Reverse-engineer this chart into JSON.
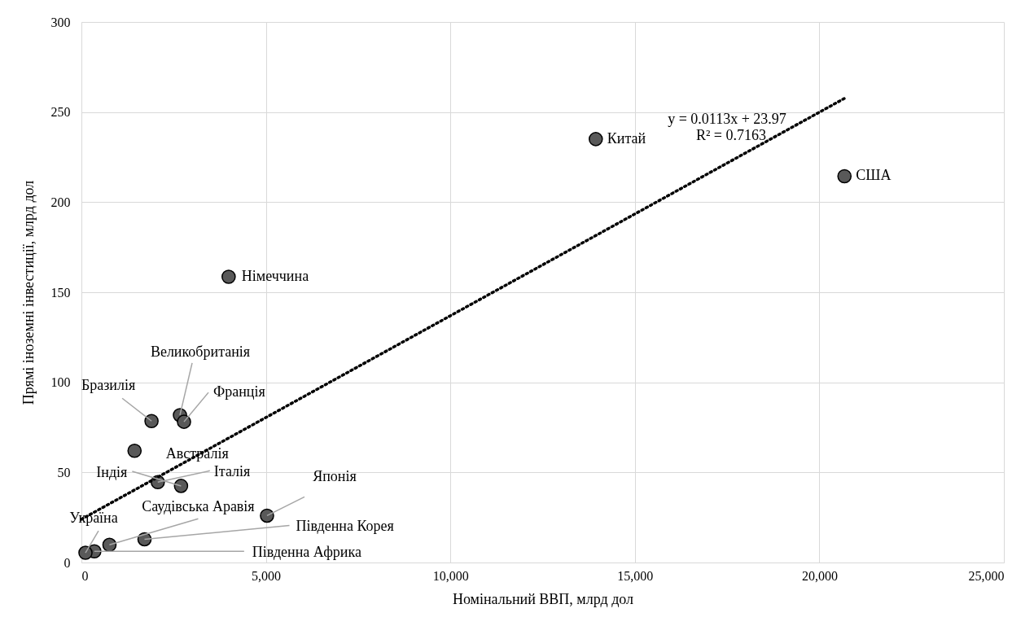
{
  "chart_data": {
    "type": "scatter",
    "xlabel": "Номінальний ВВП, млрд дол",
    "ylabel": "Прямі іноземні інвестиції, млрд дол",
    "xlim": [
      0,
      25000
    ],
    "xticks": [
      0,
      {
        "value": 5000,
        "label": "5,000"
      },
      {
        "value": 10000,
        "label": "10,000"
      },
      {
        "value": 15000,
        "label": "15,000"
      },
      {
        "value": 20000,
        "label": "20,000"
      },
      {
        "value": 25000,
        "label": "25,000"
      }
    ],
    "ylim": [
      0,
      300
    ],
    "yticks": [
      0,
      50,
      100,
      150,
      200,
      250,
      300
    ],
    "grid": true,
    "series": [
      {
        "marker": "circle",
        "color": "#595959",
        "x": [
          20680,
          13940,
          3990,
          2670,
          2780,
          1900,
          1440,
          2700,
          2070,
          5030,
          1710,
          760,
          350,
          110
        ],
        "values": [
          214.4,
          235,
          158.6,
          81.8,
          78.1,
          78.5,
          62,
          42.5,
          44.6,
          26,
          12.9,
          9.8,
          6.2,
          5.4
        ]
      },
      {
        "type": "line",
        "color": "#000000",
        "line_style": "dotted",
        "x": [
          0,
          20680
        ],
        "values": [
          24,
          257.6
        ]
      }
    ],
    "annotations": [
      {
        "text": "США",
        "x": 20680,
        "y": 214.4
      },
      {
        "text": "Китай",
        "x": 13940,
        "y": 235
      },
      {
        "text": "Німеччина",
        "x": 3990,
        "y": 158.6
      },
      {
        "text": "Великобританія",
        "x": 2670,
        "y": 81.8
      },
      {
        "text": "Франція",
        "x": 2780,
        "y": 78.1
      },
      {
        "text": "Бразилія",
        "x": 1900,
        "y": 78.5
      },
      {
        "text": "Австралія",
        "x": 1440,
        "y": 62
      },
      {
        "text": "Індія",
        "x": 2700,
        "y": 42.5
      },
      {
        "text": "Італія",
        "x": 2070,
        "y": 44.6
      },
      {
        "text": "Японія",
        "x": 5030,
        "y": 26
      },
      {
        "text": "Південна Корея",
        "x": 1710,
        "y": 12.9
      },
      {
        "text": "Саудівська Аравія",
        "x": 760,
        "y": 9.8
      },
      {
        "text": "Південна Африка",
        "x": 350,
        "y": 6.2
      },
      {
        "text": "Україна",
        "x": 110,
        "y": 5.4
      },
      "y = 0.0113x + 23.97",
      "R² = 0.7163"
    ]
  }
}
